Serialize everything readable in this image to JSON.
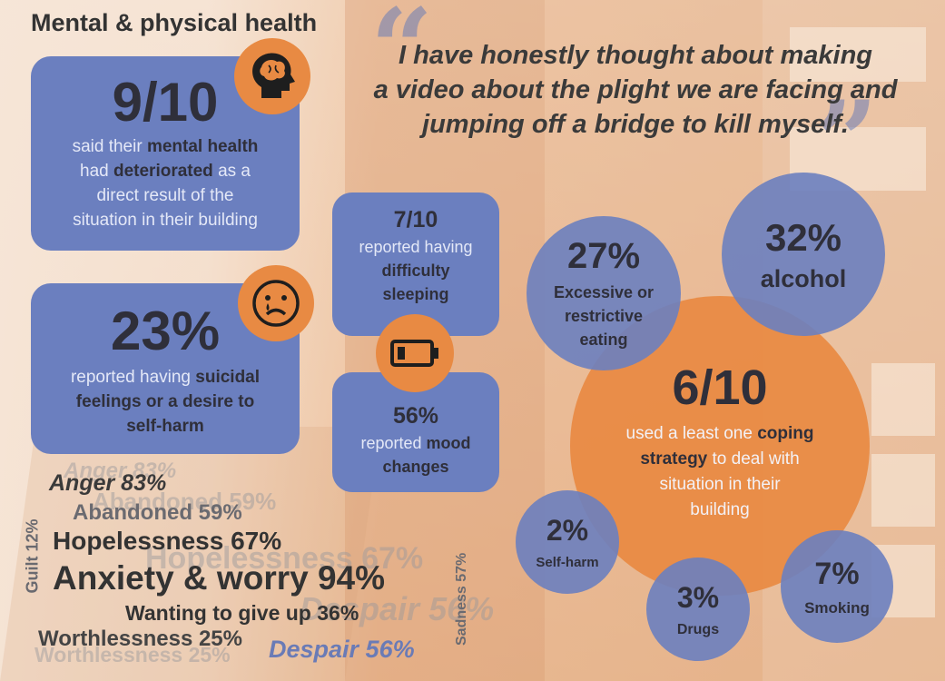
{
  "title": "Mental & physical health",
  "quote": {
    "line1": "I have honestly thought about making",
    "line2": "a video about the plight we are facing and",
    "line3": "jumping off a bridge to kill myself."
  },
  "box_mental": {
    "stat": "9/10",
    "text_1": "said their ",
    "bold_1": "mental health",
    "text_2": "had ",
    "bold_2": "deteriorated",
    "text_3": " as a",
    "text_4": "direct result of the",
    "text_5": "situation in their building",
    "icon": "brain-head-icon"
  },
  "box_suicidal": {
    "stat": "23%",
    "text_1": "reported having ",
    "bold_1": "suicidal",
    "bold_2": "feelings or a desire to",
    "bold_3": "self-harm",
    "icon": "crying-face-icon"
  },
  "box_sleep": {
    "stat": "7/10",
    "text_1": "reported having",
    "bold_1": "difficulty",
    "bold_2": "sleeping"
  },
  "box_mood": {
    "stat": "56%",
    "text_1": "reported ",
    "bold_1": "mood",
    "bold_2": "changes",
    "icon": "low-battery-icon"
  },
  "coping": {
    "stat": "6/10",
    "text_1": "used a least one ",
    "bold_1": "coping",
    "bold_2": "strategy",
    "text_2": " to deal with",
    "text_3": "situation in their",
    "text_4": "building"
  },
  "circles": {
    "alcohol": {
      "stat": "32%",
      "label": "alcohol"
    },
    "eating": {
      "stat": "27%",
      "label_1": "Excessive or",
      "label_2": "restrictive",
      "label_3": "eating"
    },
    "selfharm": {
      "stat": "2%",
      "label": "Self-harm"
    },
    "drugs": {
      "stat": "3%",
      "label": "Drugs"
    },
    "smoking": {
      "stat": "7%",
      "label": "Smoking"
    }
  },
  "emotions": {
    "anger": "Anger 83%",
    "abandoned": "Abandoned 59%",
    "guilt": "Guilt 12%",
    "hopelessness": "Hopelessness 67%",
    "anxiety": "Anxiety & worry 94%",
    "sadness": "Sadness 57%",
    "giveup": "Wanting to give up 36%",
    "worthlessness": "Worthlessness 25%",
    "despair": "Despair 56%"
  },
  "colors": {
    "box_blue": "#6b7fbf",
    "accent_orange": "#e88a43",
    "text_dark": "#2f2f3a"
  }
}
